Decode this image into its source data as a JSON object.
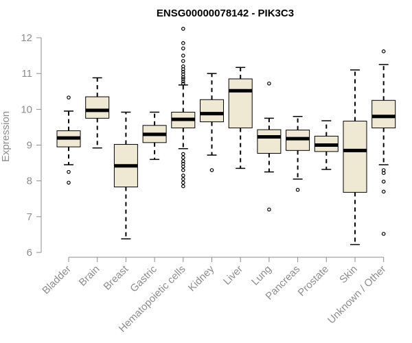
{
  "chart_data": {
    "type": "boxplot",
    "title": "ENSG00000078142 - PIK3C3",
    "ylabel": "Expression",
    "xlabel": "",
    "ylim": [
      6,
      12
    ],
    "yticks": [
      6,
      7,
      8,
      9,
      10,
      11,
      12
    ],
    "grid": false,
    "categories": [
      "Bladder",
      "Brain",
      "Breast",
      "Gastric",
      "Hematopoietic cells",
      "Kidney",
      "Liver",
      "Lung",
      "Pancreas",
      "Prostate",
      "Skin",
      "Unknown / Other"
    ],
    "boxes": [
      {
        "min": 8.45,
        "q1": 8.95,
        "median": 9.2,
        "q3": 9.4,
        "max": 9.95,
        "outliers": [
          10.33,
          8.25,
          7.95
        ]
      },
      {
        "min": 8.92,
        "q1": 9.75,
        "median": 9.97,
        "q3": 10.35,
        "max": 10.88,
        "outliers": []
      },
      {
        "min": 6.38,
        "q1": 7.83,
        "median": 8.42,
        "q3": 9.02,
        "max": 9.92,
        "outliers": []
      },
      {
        "min": 8.6,
        "q1": 9.07,
        "median": 9.3,
        "q3": 9.55,
        "max": 9.92,
        "outliers": []
      },
      {
        "min": 8.9,
        "q1": 9.48,
        "median": 9.72,
        "q3": 9.92,
        "max": 10.68,
        "outliers": [
          12.25,
          11.85,
          11.7,
          11.5,
          11.35,
          11.2,
          11.12,
          11.05,
          10.98,
          10.9,
          10.85,
          10.78,
          10.72,
          8.75,
          8.65,
          8.55,
          8.48,
          8.4,
          8.3,
          8.15,
          8.05,
          7.95,
          7.85
        ]
      },
      {
        "min": 8.72,
        "q1": 9.65,
        "median": 9.88,
        "q3": 10.27,
        "max": 11.0,
        "outliers": [
          8.3
        ]
      },
      {
        "min": 8.35,
        "q1": 9.48,
        "median": 10.52,
        "q3": 10.85,
        "max": 11.17,
        "outliers": []
      },
      {
        "min": 8.25,
        "q1": 8.77,
        "median": 9.23,
        "q3": 9.43,
        "max": 9.75,
        "outliers": [
          10.72,
          7.2
        ]
      },
      {
        "min": 8.05,
        "q1": 8.85,
        "median": 9.18,
        "q3": 9.42,
        "max": 9.8,
        "outliers": [
          7.75
        ]
      },
      {
        "min": 8.32,
        "q1": 8.82,
        "median": 9.0,
        "q3": 9.25,
        "max": 9.68,
        "outliers": []
      },
      {
        "min": 6.22,
        "q1": 7.68,
        "median": 8.85,
        "q3": 9.67,
        "max": 11.1,
        "outliers": []
      },
      {
        "min": 8.45,
        "q1": 9.48,
        "median": 9.8,
        "q3": 10.25,
        "max": 11.25,
        "outliers": [
          11.62,
          8.3,
          8.22,
          7.98,
          7.7,
          6.52
        ]
      }
    ],
    "box_fill": "#efe8d2",
    "axis_color": "#8c8c8c"
  }
}
